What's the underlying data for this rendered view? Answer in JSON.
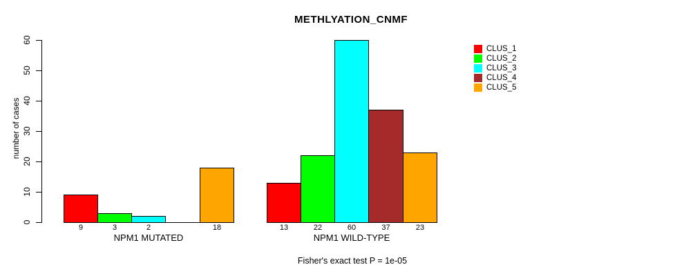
{
  "chart_data": {
    "type": "bar",
    "title": "METHLYATION_CNMF",
    "ylabel": "number of cases",
    "xlabel": "",
    "ylim": [
      0,
      60
    ],
    "yticks": [
      0,
      10,
      20,
      30,
      40,
      50,
      60
    ],
    "grid": false,
    "legend_position": "right",
    "categories": [
      "NPM1 MUTATED",
      "NPM1 WILD-TYPE"
    ],
    "series": [
      {
        "name": "CLUS_1",
        "color": "#FF0000",
        "values": [
          9,
          13
        ]
      },
      {
        "name": "CLUS_2",
        "color": "#00FF00",
        "values": [
          3,
          22
        ]
      },
      {
        "name": "CLUS_3",
        "color": "#00FFFF",
        "values": [
          2,
          60
        ]
      },
      {
        "name": "CLUS_4",
        "color": "#A52A2A",
        "values": [
          0,
          37
        ]
      },
      {
        "name": "CLUS_5",
        "color": "#FFA500",
        "values": [
          18,
          23
        ]
      }
    ],
    "bar_value_labels_shown": [
      "9",
      "3",
      "2",
      "18",
      "13",
      "22",
      "60",
      "37",
      "23"
    ],
    "footer": "Fisher's exact test P = 1e-05"
  }
}
